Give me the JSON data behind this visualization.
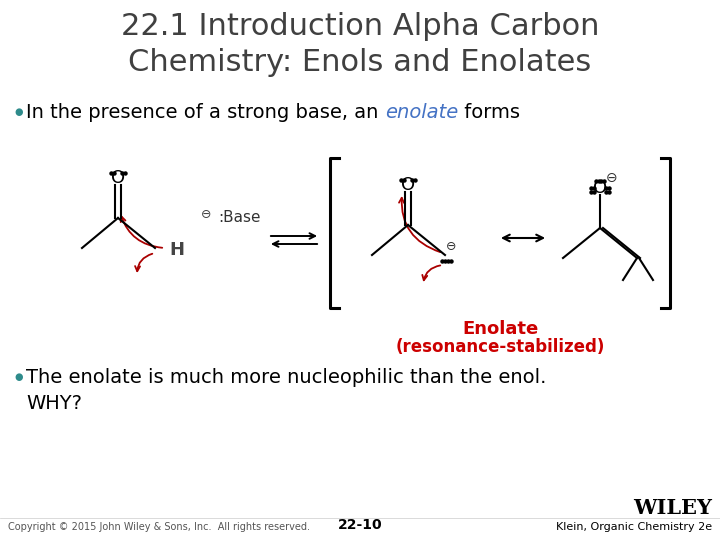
{
  "title_line1": "22.1 Introduction Alpha Carbon",
  "title_line2": "Chemistry: Enols and Enolates",
  "title_fontsize": 22,
  "title_color": "#404040",
  "bullet1_pre": "In the presence of a strong base, an ",
  "bullet1_mid": "enolate",
  "bullet1_post": " forms",
  "bullet1_fontsize": 14,
  "bullet_color_blue": "#4472C4",
  "bullet2_line1": "The enolate is much more nucleophilic than the enol.",
  "bullet2_line2": "WHY?",
  "bullet2_fontsize": 14,
  "bullet2_color": "#000000",
  "enolate_label1": "Enolate",
  "enolate_label2": "(resonance-stabilized)",
  "enolate_label_color": "#CC0000",
  "enolate_label_fontsize": 12,
  "footer_copyright": "Copyright © 2015 John Wiley & Sons, Inc.  All rights reserved.",
  "footer_page": "22-10",
  "footer_publisher": "WILEY",
  "footer_book": "Klein, Organic Chemistry 2e",
  "footer_fontsize": 7,
  "background_color": "#FFFFFF",
  "red_color": "#AA0000",
  "black_color": "#000000",
  "blue_color": "#4472C4",
  "teal_color": "#2E8B8B",
  "gray_color": "#555555"
}
